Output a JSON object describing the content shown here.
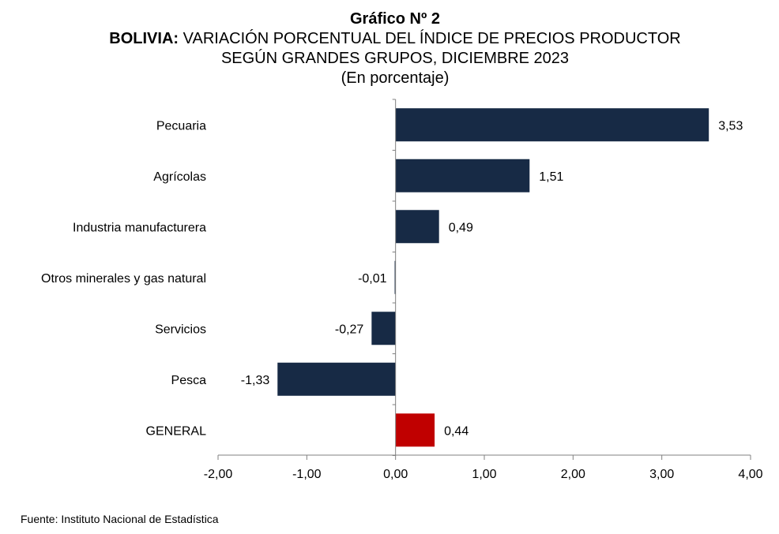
{
  "header": {
    "title": "Gráfico Nº 2",
    "subtitle_bold": "BOLIVIA:",
    "subtitle_rest": " VARIACIÓN PORCENTUAL DEL ÍNDICE DE PRECIOS PRODUCTOR",
    "subtitle_line2": "SEGÚN GRANDES GRUPOS, DICIEMBRE 2023",
    "unit_note": "(En porcentaje)"
  },
  "source": "Fuente: Instituto Nacional de Estadística",
  "chart_data": {
    "type": "bar",
    "orientation": "horizontal",
    "categories": [
      "Pecuaria",
      "Agrícolas",
      "Industria manufacturera",
      "Otros minerales y gas natural",
      "Servicios",
      "Pesca",
      "GENERAL"
    ],
    "values": [
      3.53,
      1.51,
      0.49,
      -0.01,
      -0.27,
      -1.33,
      0.44
    ],
    "value_labels": [
      "3,53",
      "1,51",
      "0,49",
      "-0,01",
      "-0,27",
      "-1,33",
      "0,44"
    ],
    "bar_colors": [
      "#172a45",
      "#172a45",
      "#172a45",
      "#172a45",
      "#172a45",
      "#172a45",
      "#c00000"
    ],
    "xlim": [
      -2,
      4
    ],
    "x_ticks": [
      -2,
      -1,
      0,
      1,
      2,
      3,
      4
    ],
    "x_tick_labels": [
      "-2,00",
      "-1,00",
      "0,00",
      "1,00",
      "2,00",
      "3,00",
      "4,00"
    ],
    "grid": false,
    "legend": "none"
  }
}
